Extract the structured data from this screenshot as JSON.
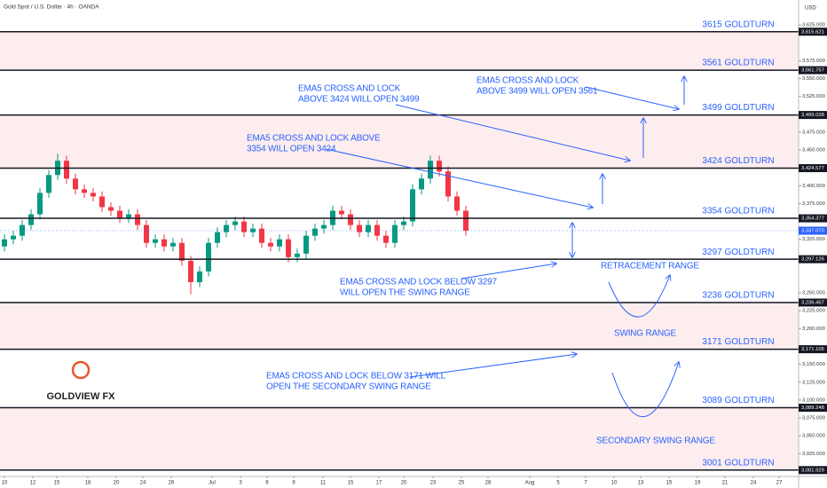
{
  "chart_data": {
    "type": "candlestick",
    "title": "Gold Spot / U.S. Dollar · 4h · OANDA",
    "currency": "USD",
    "xlim": [
      0,
      90
    ],
    "ylim": [
      2993,
      3660
    ],
    "xticks": [
      {
        "value": 0.5,
        "label": "10"
      },
      {
        "value": 3.7,
        "label": "12"
      },
      {
        "value": 6.4,
        "label": "15"
      },
      {
        "value": 9.9,
        "label": "18"
      },
      {
        "value": 13.1,
        "label": "20"
      },
      {
        "value": 16.1,
        "label": "24"
      },
      {
        "value": 19.3,
        "label": "26"
      },
      {
        "value": 23.9,
        "label": "Jul"
      },
      {
        "value": 27.1,
        "label": "3"
      },
      {
        "value": 30.1,
        "label": "6"
      },
      {
        "value": 33.1,
        "label": "9"
      },
      {
        "value": 36.4,
        "label": "11"
      },
      {
        "value": 39.5,
        "label": "15"
      },
      {
        "value": 42.7,
        "label": "17"
      },
      {
        "value": 45.5,
        "label": "20"
      },
      {
        "value": 48.8,
        "label": "23"
      },
      {
        "value": 52,
        "label": "25"
      },
      {
        "value": 55,
        "label": "28"
      },
      {
        "value": 59.7,
        "label": "Aug"
      },
      {
        "value": 62.9,
        "label": "5"
      },
      {
        "value": 66,
        "label": "7"
      },
      {
        "value": 69.2,
        "label": "10"
      },
      {
        "value": 72.2,
        "label": "13"
      },
      {
        "value": 75.4,
        "label": "15"
      },
      {
        "value": 78.6,
        "label": "19"
      },
      {
        "value": 81.7,
        "label": "21"
      },
      {
        "value": 84.9,
        "label": "24"
      },
      {
        "value": 87.8,
        "label": "27"
      }
    ],
    "yticks": [
      {
        "value": 3625,
        "label": "3,625.000"
      },
      {
        "value": 3575,
        "label": "3,575.000"
      },
      {
        "value": 3550,
        "label": "3,550.000"
      },
      {
        "value": 3525,
        "label": "3,525.000"
      },
      {
        "value": 3475,
        "label": "3,475.000"
      },
      {
        "value": 3450,
        "label": "3,450.000"
      },
      {
        "value": 3400,
        "label": "3,400.000"
      },
      {
        "value": 3375,
        "label": "3,375.000"
      },
      {
        "value": 3325,
        "label": "3,325.000"
      },
      {
        "value": 3250,
        "label": "3,250.000"
      },
      {
        "value": 3225,
        "label": "3,225.000"
      },
      {
        "value": 3200,
        "label": "3,200.000"
      },
      {
        "value": 3150,
        "label": "3,150.000"
      },
      {
        "value": 3125,
        "label": "3,125.000"
      },
      {
        "value": 3100,
        "label": "3,100.000"
      },
      {
        "value": 3075,
        "label": "3,075.000"
      },
      {
        "value": 3050,
        "label": "3,050.000"
      },
      {
        "value": 3025,
        "label": "3,025.000"
      }
    ],
    "up_color": "#089981",
    "down_color": "#f23645",
    "x": [
      0.5,
      1.5,
      2.5,
      3.5,
      4.5,
      5.5,
      6.5,
      7.5,
      8.5,
      9.5,
      10.5,
      11.5,
      12.5,
      13.5,
      14.5,
      15.5,
      16.5,
      17.5,
      18.5,
      19.5,
      20.5,
      21.5,
      22.5,
      23.5,
      24.5,
      25.5,
      26.5,
      27.5,
      28.5,
      29.5,
      30.5,
      31.5,
      32.5,
      33.5,
      34.5,
      35.5,
      36.5,
      37.5,
      38.5,
      39.5,
      40.5,
      41.5,
      42.5,
      43.5,
      44.5,
      45.5,
      46.5,
      47.5,
      48.5,
      49.5,
      50.5,
      51.5,
      52.5
    ],
    "open": [
      3315,
      3325,
      3330,
      3345,
      3360,
      3390,
      3415,
      3435,
      3410,
      3395,
      3390,
      3385,
      3370,
      3365,
      3355,
      3360,
      3345,
      3320,
      3325,
      3315,
      3320,
      3295,
      3265,
      3280,
      3320,
      3335,
      3345,
      3350,
      3335,
      3340,
      3320,
      3315,
      3325,
      3300,
      3305,
      3330,
      3340,
      3345,
      3365,
      3360,
      3345,
      3335,
      3345,
      3330,
      3320,
      3345,
      3350,
      3395,
      3410,
      3435,
      3420,
      3385,
      3365
    ],
    "high": [
      3332,
      3337,
      3352,
      3367,
      3397,
      3422,
      3445,
      3442,
      3417,
      3402,
      3397,
      3392,
      3377,
      3372,
      3367,
      3367,
      3352,
      3332,
      3332,
      3327,
      3327,
      3302,
      3287,
      3327,
      3342,
      3352,
      3357,
      3357,
      3347,
      3347,
      3327,
      3332,
      3332,
      3312,
      3337,
      3347,
      3352,
      3372,
      3372,
      3367,
      3352,
      3352,
      3352,
      3337,
      3352,
      3357,
      3402,
      3417,
      3442,
      3442,
      3427,
      3392,
      3372
    ],
    "low": [
      3308,
      3318,
      3323,
      3338,
      3353,
      3383,
      3408,
      3403,
      3388,
      3383,
      3378,
      3363,
      3358,
      3348,
      3348,
      3338,
      3313,
      3313,
      3308,
      3308,
      3288,
      3248,
      3258,
      3273,
      3313,
      3328,
      3338,
      3328,
      3328,
      3313,
      3308,
      3308,
      3293,
      3293,
      3298,
      3323,
      3333,
      3338,
      3353,
      3338,
      3328,
      3328,
      3323,
      3313,
      3313,
      3338,
      3343,
      3388,
      3403,
      3413,
      3378,
      3358,
      3330
    ],
    "close": [
      3325,
      3330,
      3345,
      3360,
      3390,
      3415,
      3435,
      3410,
      3395,
      3390,
      3385,
      3370,
      3365,
      3355,
      3360,
      3345,
      3320,
      3325,
      3315,
      3320,
      3295,
      3265,
      3280,
      3320,
      3335,
      3345,
      3350,
      3335,
      3340,
      3320,
      3315,
      3325,
      3300,
      3305,
      3330,
      3340,
      3345,
      3365,
      3360,
      3345,
      3335,
      3345,
      3330,
      3320,
      3345,
      3350,
      3395,
      3410,
      3435,
      3420,
      3385,
      3365,
      3337
    ],
    "levels": [
      {
        "value": 3615.621,
        "label": "3,615.621",
        "name": "3615 GOLDTURN",
        "shaded_below": true
      },
      {
        "value": 3561.757,
        "label": "3,561.757",
        "name": "3561 GOLDTURN",
        "shaded_below": false
      },
      {
        "value": 3499.028,
        "label": "3,499.028",
        "name": "3499 GOLDTURN",
        "shaded_below": true
      },
      {
        "value": 3424.577,
        "label": "3,424.577",
        "name": "3424 GOLDTURN",
        "shaded_below": false
      },
      {
        "value": 3354.377,
        "label": "3,354.377",
        "name": "3354 GOLDTURN",
        "shaded_below": false
      },
      {
        "value": 3297.126,
        "label": "3,297.126",
        "name": "3297 GOLDTURN",
        "shaded_below": false
      },
      {
        "value": 3236.467,
        "label": "3,236.467",
        "name": "3236 GOLDTURN",
        "shaded_below": true
      },
      {
        "value": 3171.105,
        "label": "3,171.105",
        "name": "3171 GOLDTURN",
        "shaded_below": false
      },
      {
        "value": 3089.248,
        "label": "3,089.248",
        "name": "3089 GOLDTURN",
        "shaded_below": true
      },
      {
        "value": 3001.929,
        "label": "3,001.929",
        "name": "3001 GOLDTURN",
        "shaded_below": false
      }
    ],
    "shade_color": "rgba(242,54,69,0.09)",
    "last_price": {
      "value": 3337.07,
      "label": "3,337.070"
    },
    "annotations": {
      "a3424": [
        "EMA5 CROSS AND LOCK",
        "ABOVE 3424 WILL OPEN 3499"
      ],
      "a3499": [
        "EMA5 CROSS AND LOCK",
        "ABOVE 3499 WILL OPEN 3561"
      ],
      "a3354": [
        "EMA5 CROSS AND LOCK ABOVE",
        "3354 WILL OPEN 3424"
      ],
      "a3297": [
        "EMA5 CROSS AND LOCK BELOW 3297",
        "WILL OPEN THE SWING RANGE"
      ],
      "a3171": [
        "EMA5 CROSS AND LOCK BELOW 3171 WILL",
        "OPEN THE SECONDARY SWING RANGE"
      ],
      "retracement": "RETRACEMENT RANGE",
      "swing": "SWING RANGE",
      "secondary": "SECONDARY SWING RANGE"
    },
    "logo": "GOLDVIEW FX"
  }
}
